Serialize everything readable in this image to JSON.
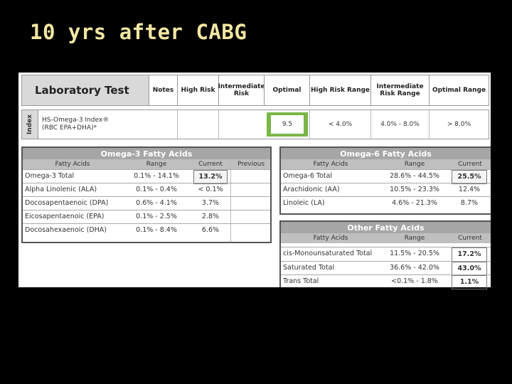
{
  "slide_title": "10 yrs after CABG",
  "header": {
    "lab_test": "Laboratory Test",
    "notes": "Notes",
    "high_risk": "High Risk",
    "intermediate_risk": "Intermediate Risk",
    "optimal": "Optimal",
    "high_risk_range": "High Risk Range",
    "intermediate_risk_range": "Intermediate Risk Range",
    "optimal_range": "Optimal Range"
  },
  "index_row": {
    "label": "Index",
    "name_line1": "HS-Omega-3 Index®",
    "name_line2": "(RBC EPA+DHA)*",
    "optimal_value": "9.5",
    "high_risk_range": "< 4.0%",
    "intermediate_risk_range": "4.0% - 8.0%",
    "optimal_range": "> 8.0%"
  },
  "omega3": {
    "title": "Omega-3 Fatty Acids",
    "columns": [
      "Fatty Acids",
      "Range",
      "Current",
      "Previous"
    ],
    "rows": [
      {
        "name": "Omega-3 Total",
        "range": "0.1% - 14.1%",
        "current": "13.2%"
      },
      {
        "name": "Alpha Linolenic (ALA)",
        "range": "0.1% - 0.4%",
        "current": "< 0.1%"
      },
      {
        "name": "Docosapentaenoic (DPA)",
        "range": "0.6% - 4.1%",
        "current": "3.7%"
      },
      {
        "name": "Eicosapentaenoic (EPA)",
        "range": "0.1% - 2.5%",
        "current": "2.8%"
      },
      {
        "name": "Docosahexaenoic (DHA)",
        "range": "0.1% - 8.4%",
        "current": "6.6%"
      }
    ]
  },
  "omega6": {
    "title": "Omega-6 Fatty Acids",
    "columns": [
      "Fatty Acids",
      "Range",
      "Current"
    ],
    "rows": [
      {
        "name": "Omega-6 Total",
        "range": "28.6% - 44.5%",
        "current": "25.5%"
      },
      {
        "name": "Arachidonic (AA)",
        "range": "10.5% - 23.3%",
        "current": "12.4%"
      },
      {
        "name": "Linoleic (LA)",
        "range": "4.6% - 21.3%",
        "current": "8.7%"
      }
    ]
  },
  "other": {
    "title": "Other Fatty Acids",
    "columns": [
      "Fatty Acids",
      "Range",
      "Current"
    ],
    "rows": [
      {
        "name": "cis-Monounsaturated Total",
        "range": "11.5% - 20.5%",
        "current": "17.2%"
      },
      {
        "name": "Saturated Total",
        "range": "36.6% - 42.0%",
        "current": "43.0%"
      },
      {
        "name": "Trans Total",
        "range": "<0.1% - 1.8%",
        "current": "1.1%"
      }
    ]
  }
}
